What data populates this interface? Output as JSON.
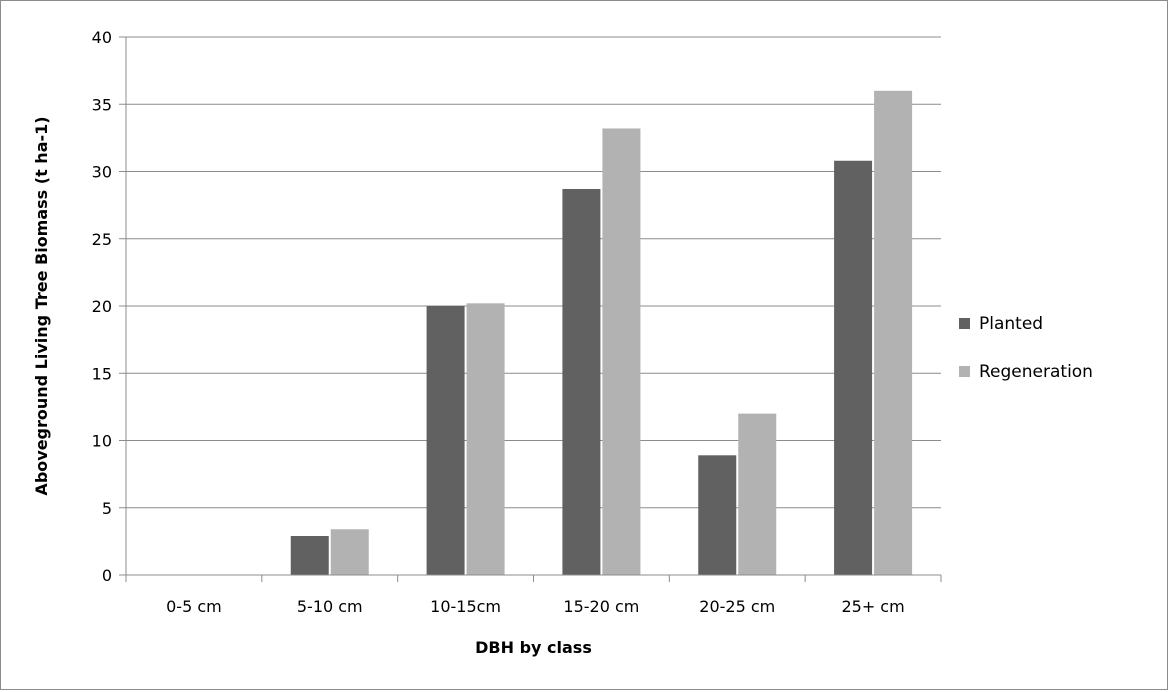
{
  "chart_data": {
    "type": "bar",
    "title": "",
    "xlabel": "DBH by class",
    "ylabel": "Aboveground Living Tree Biomass (t ha-1)",
    "categories": [
      "0-5 cm",
      "5-10 cm",
      "10-15cm",
      "15-20 cm",
      "20-25 cm",
      "25+ cm"
    ],
    "series": [
      {
        "name": "Planted",
        "color": "#616161",
        "values": [
          0,
          2.9,
          20.0,
          28.7,
          8.9,
          30.8
        ]
      },
      {
        "name": "Regeneration",
        "color": "#b2b2b2",
        "values": [
          0,
          3.4,
          20.2,
          33.2,
          12.0,
          36.0
        ]
      }
    ],
    "ylim": [
      0,
      40
    ],
    "yticks": [
      0,
      5,
      10,
      15,
      20,
      25,
      30,
      35,
      40
    ],
    "grid": true,
    "legend_position": "right"
  }
}
